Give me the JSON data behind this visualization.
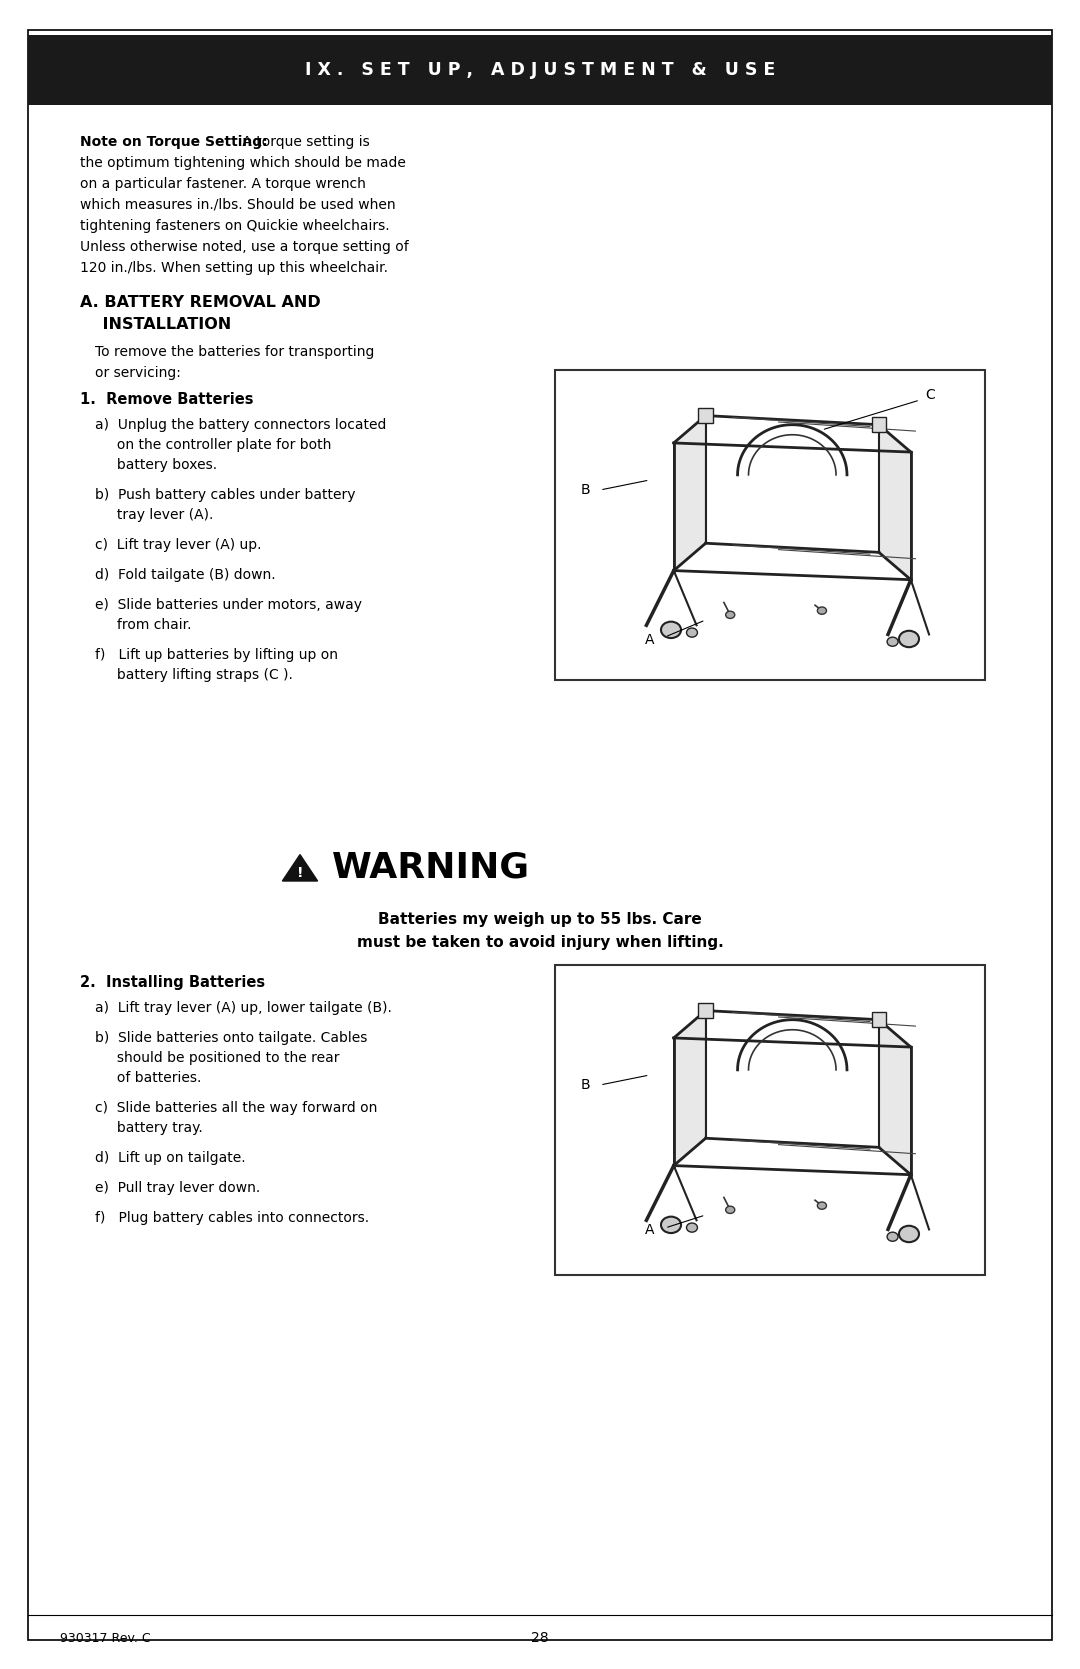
{
  "page_bg": "#ffffff",
  "header_bg": "#1a1a1a",
  "header_text": "I X .   S E T   U P ,   A D J U S T M E N T   &   U S E",
  "header_text_color": "#ffffff",
  "note_bold": "Note on Torque Setting:",
  "note_lines": [
    " A torque setting is",
    "the optimum tightening which should be made",
    "on a particular fastener. A torque wrench",
    "which measures in./lbs. Should be used when",
    "tightening fasteners on Quickie wheelchairs.",
    "Unless otherwise noted, use a torque setting of",
    "120 in./lbs. When setting up this wheelchair."
  ],
  "sec_title_line1": "A. BATTERY REMOVAL AND",
  "sec_title_line2": "    INSTALLATION",
  "intro_line1": "To remove the batteries for transporting",
  "intro_line2": "or servicing:",
  "step1_title": "1.  Remove Batteries",
  "step1_items": [
    [
      "a)  Unplug the battery connectors located",
      "     on the controller plate for both",
      "     battery boxes."
    ],
    [
      "b)  Push battery cables under battery",
      "     tray lever (A)."
    ],
    [
      "c)  Lift tray lever (A) up."
    ],
    [
      "d)  Fold tailgate (B) down."
    ],
    [
      "e)  Slide batteries under motors, away",
      "     from chair."
    ],
    [
      "f)   Lift up batteries by lifting up on",
      "     battery lifting straps (C )."
    ]
  ],
  "warning_title": "WARNING",
  "warning_line1": "Batteries my weigh up to 55 lbs. Care",
  "warning_line2": "must be taken to avoid injury when lifting.",
  "step2_title": "2.  Installing Batteries",
  "step2_items": [
    [
      "a)  Lift tray lever (A) up, lower tailgate (B)."
    ],
    [
      "b)  Slide batteries onto tailgate. Cables",
      "     should be positioned to the rear",
      "     of batteries."
    ],
    [
      "c)  Slide batteries all the way forward on",
      "     battery tray."
    ],
    [
      "d)  Lift up on tailgate."
    ],
    [
      "e)  Pull tray lever down."
    ],
    [
      "f)   Plug battery cables into connectors."
    ]
  ],
  "footer_left": "930317 Rev. C",
  "footer_center": "28"
}
